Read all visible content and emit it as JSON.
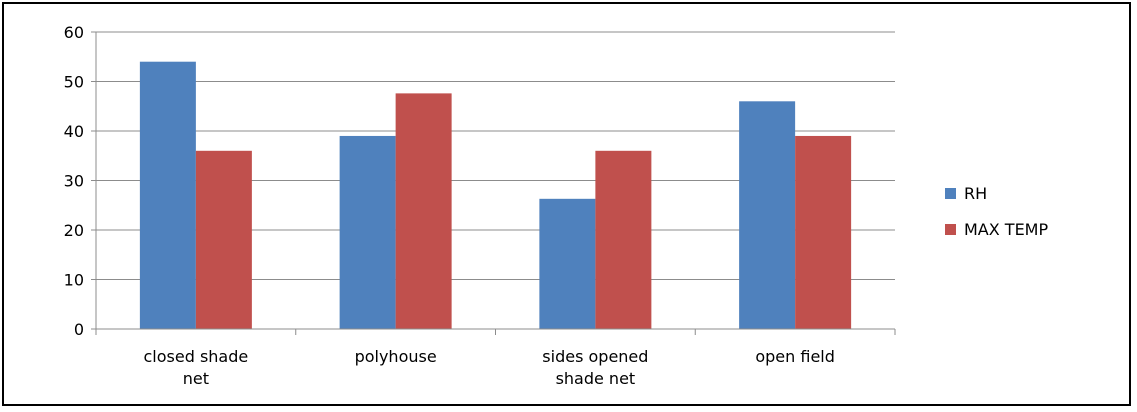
{
  "chart_data": {
    "type": "bar",
    "title": "",
    "xlabel": "",
    "ylabel": "",
    "categories": [
      [
        "closed shade",
        "net"
      ],
      [
        "polyhouse"
      ],
      [
        "sides opened",
        "shade net"
      ],
      [
        "open field"
      ]
    ],
    "series": [
      {
        "name": "RH",
        "values": [
          54,
          39,
          26.3,
          46
        ],
        "color": "#4F81BD"
      },
      {
        "name": "MAX TEMP",
        "values": [
          36,
          47.6,
          36,
          39
        ],
        "color": "#C0504D"
      }
    ],
    "ylim": [
      0,
      60
    ],
    "yticks": [
      0,
      10,
      20,
      30,
      40,
      50,
      60
    ],
    "grid": true,
    "legend_position": "right"
  }
}
